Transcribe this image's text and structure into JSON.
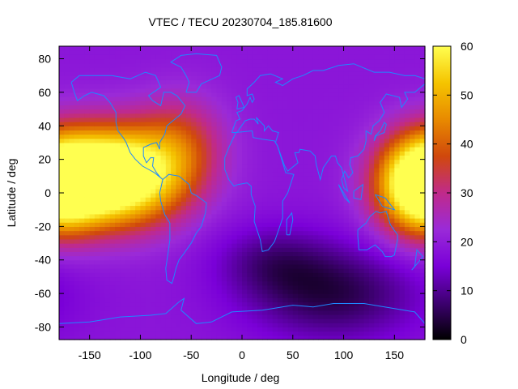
{
  "chart_data": {
    "type": "heatmap",
    "title": "VTEC / TECU 20230704_185.81600",
    "xlabel": "Longitude / deg",
    "ylabel": "Latitude / deg",
    "xlim": [
      -180,
      180
    ],
    "ylim": [
      -87.5,
      87.5
    ],
    "x_ticks": [
      -150,
      -100,
      -50,
      0,
      50,
      100,
      150
    ],
    "y_ticks": [
      -80,
      -60,
      -40,
      -20,
      0,
      20,
      40,
      60,
      80
    ],
    "colorbar": {
      "min": 0,
      "max": 60,
      "ticks": [
        0,
        10,
        20,
        30,
        40,
        50,
        60
      ]
    },
    "colormap": [
      "#000000",
      "#3d0070",
      "#7a00d8",
      "#9a2ad8",
      "#c02a8a",
      "#d0480c",
      "#e88a00",
      "#f5c400",
      "#ffff50"
    ],
    "coastline_color": "#1e88ff",
    "grid": false,
    "features": [
      {
        "lon": -125,
        "lat": 10,
        "peak": 57,
        "sigma_lon": 45,
        "sigma_lat": 20
      },
      {
        "lon": 175,
        "lat": 5,
        "peak": 46,
        "sigma_lon": 30,
        "sigma_lat": 20
      },
      {
        "lon": -60,
        "lat": 30,
        "peak": 14,
        "sigma_lon": 30,
        "sigma_lat": 20
      },
      {
        "lon": 90,
        "lat": -60,
        "peak": -14,
        "sigma_lon": 60,
        "sigma_lat": 20
      },
      {
        "lon": 30,
        "lat": -40,
        "peak": -8,
        "sigma_lon": 40,
        "sigma_lat": 15
      }
    ],
    "background_level": 19
  }
}
